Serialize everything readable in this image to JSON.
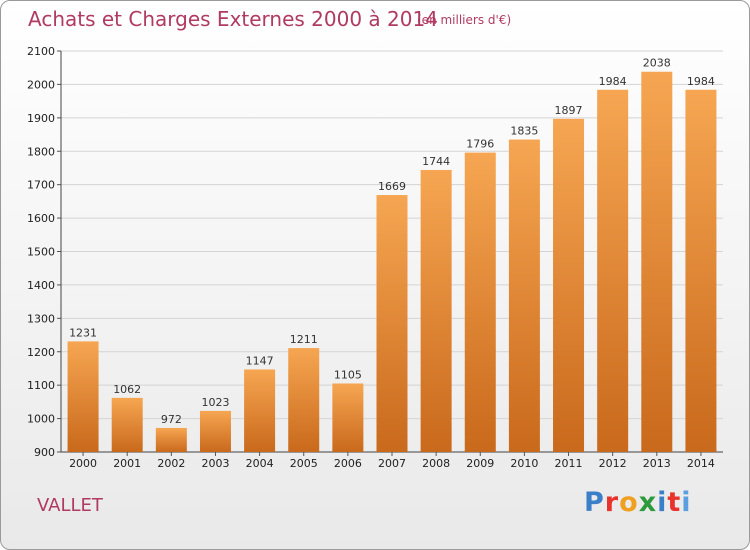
{
  "header": {
    "title": "Achats et Charges Externes 2000 à 2014",
    "subtitle": "(en milliers d'€)"
  },
  "footer": {
    "commune": "VALLET",
    "logo_text": "Proxiti",
    "logo_colors": [
      "#3a7fc8",
      "#e8322b",
      "#f0a020",
      "#2e9a3e",
      "#3a7fc8",
      "#e8322b",
      "#5aa0e0"
    ]
  },
  "colors": {
    "bar_light": "#f6a652",
    "bar_dark": "#c9691b",
    "title": "#b03a62",
    "grid": "#d4d4d4"
  },
  "chart_data": {
    "type": "bar",
    "categories": [
      "2000",
      "2001",
      "2002",
      "2003",
      "2004",
      "2005",
      "2006",
      "2007",
      "2008",
      "2009",
      "2010",
      "2011",
      "2012",
      "2013",
      "2014"
    ],
    "values": [
      1231,
      1062,
      972,
      1023,
      1147,
      1211,
      1105,
      1669,
      1744,
      1796,
      1835,
      1897,
      1984,
      2038,
      1984
    ],
    "ylim": [
      900,
      2100
    ],
    "yticks": [
      900,
      1000,
      1100,
      1200,
      1300,
      1400,
      1500,
      1600,
      1700,
      1800,
      1900,
      2000,
      2100
    ],
    "grid": true
  }
}
